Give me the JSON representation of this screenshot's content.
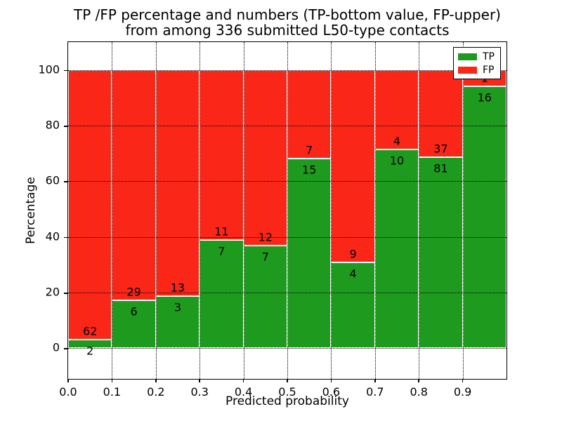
{
  "figure": {
    "title_line1": "TP /FP percentage and numbers (TP-bottom value, FP-upper)",
    "title_line2": "from among 336 submitted L50-type contacts"
  },
  "chart_data": {
    "type": "bar",
    "variant": "stacked-percentage",
    "title": "TP /FP percentage and numbers (TP-bottom value, FP-upper)\nfrom among 336 submitted L50-type contacts",
    "xlabel": "Predicted probability",
    "ylabel": "Percentage",
    "total_contacts": 336,
    "bin_width": 0.1,
    "categories": [
      0.0,
      0.1,
      0.2,
      0.3,
      0.4,
      0.5,
      0.6,
      0.7,
      0.8,
      0.9
    ],
    "series": [
      {
        "name": "TP",
        "color": "#1e9b1e",
        "values": [
          2,
          6,
          3,
          7,
          7,
          15,
          4,
          10,
          81,
          16
        ]
      },
      {
        "name": "FP",
        "color": "#fa2718",
        "values": [
          62,
          29,
          13,
          11,
          12,
          7,
          9,
          4,
          37,
          1
        ]
      }
    ],
    "bar_edge_color": "#ffffff",
    "label_note": "TP count drawn below stack boundary, FP count above it",
    "axes": {
      "xlim": [
        0.0,
        1.0
      ],
      "ylim": [
        -11,
        110
      ],
      "x_ticks": [
        "0.0",
        "0.1",
        "0.2",
        "0.3",
        "0.4",
        "0.5",
        "0.6",
        "0.7",
        "0.8",
        "0.9"
      ],
      "y_ticks": [
        0,
        20,
        40,
        60,
        80,
        100
      ],
      "grid": true,
      "grid_style": "dotted"
    },
    "legend": {
      "position": "upper right",
      "entries": [
        "TP",
        "FP"
      ]
    }
  }
}
